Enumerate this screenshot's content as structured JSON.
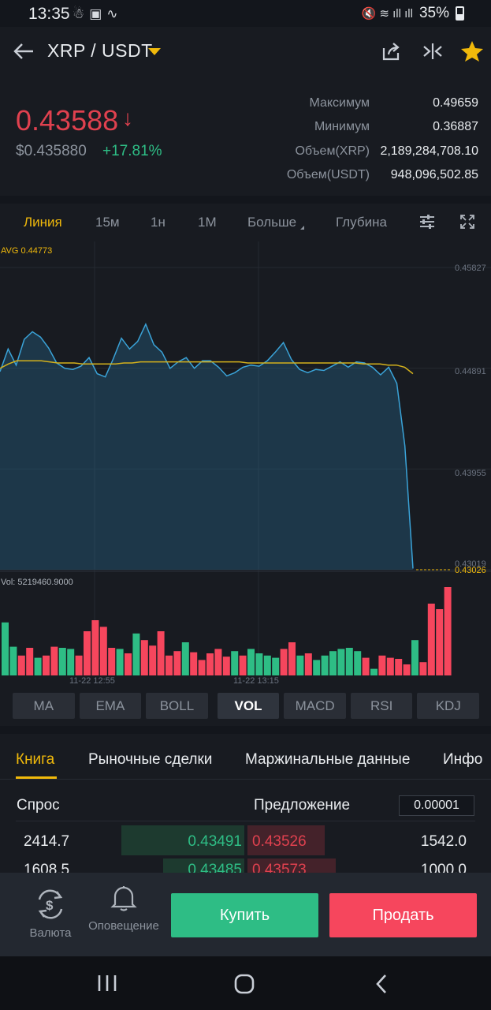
{
  "status_bar": {
    "time": "13:35",
    "battery": "35%"
  },
  "header": {
    "pair": "XRP / USDT",
    "icons": [
      "back-arrow-icon",
      "share-icon",
      "compare-icon",
      "star-icon"
    ]
  },
  "summary": {
    "price": "0.43588",
    "price_arrow": "↓",
    "fiat_price": "$0.435880",
    "change": "+17.81%",
    "stats": [
      {
        "label": "Максимум",
        "value": "0.49659"
      },
      {
        "label": "Минимум",
        "value": "0.36887"
      },
      {
        "label": "Объем(XRP)",
        "value": "2,189,284,708.10"
      },
      {
        "label": "Объем(USDT)",
        "value": "948,096,502.85"
      }
    ],
    "colors": {
      "down": "#e0414f",
      "up": "#2ebd85",
      "accent": "#f0b90b"
    }
  },
  "chart_tabs": {
    "line": "Линия",
    "m15": "15м",
    "h1": "1н",
    "M1": "1М",
    "more": "Больше",
    "depth": "Глубина"
  },
  "chart_labels": {
    "avg": "AVG 0.44773",
    "vol": "Vol: 5219460.9000",
    "y_ticks": [
      "0.45827",
      "0.44891",
      "0.43955",
      "0.43019"
    ],
    "last_price_tag": "0.43026",
    "x_ticks": [
      "11-22 12:55",
      "11-22 13:15"
    ]
  },
  "chart_data": {
    "type": "line",
    "series": [
      {
        "values": [
          0.4486,
          0.4507,
          0.4492,
          0.4516,
          0.4523,
          0.4518,
          0.4508,
          0.4494,
          0.4489,
          0.4488,
          0.4491,
          0.4499,
          0.4484,
          0.4481,
          0.4498,
          0.4517,
          0.4507,
          0.4514,
          0.453,
          0.4511,
          0.4504,
          0.4489,
          0.4495,
          0.4499,
          0.4489,
          0.4496,
          0.4496,
          0.449,
          0.4482,
          0.4485,
          0.449,
          0.4492,
          0.4491,
          0.4496,
          0.4504,
          0.4513,
          0.4497,
          0.4488,
          0.4485,
          0.4488,
          0.4487,
          0.4491,
          0.4495,
          0.449,
          0.4495,
          0.4494,
          0.449,
          0.4483,
          0.449,
          0.4475,
          0.4417,
          0.4303
        ]
      },
      {
        "values": [
          0.4489,
          0.4493,
          0.4496,
          0.4496,
          0.4496,
          0.4496,
          0.4495,
          0.4494,
          0.4494,
          0.4494,
          0.4493,
          0.4493,
          0.4493,
          0.4493,
          0.4493,
          0.4494,
          0.4494,
          0.4495,
          0.4495,
          0.4495,
          0.4495,
          0.4495,
          0.4495,
          0.4495,
          0.4495,
          0.4495,
          0.4495,
          0.4495,
          0.4495,
          0.4495,
          0.4494,
          0.4494,
          0.4494,
          0.4494,
          0.4494,
          0.4494,
          0.4494,
          0.4494,
          0.4494,
          0.4494,
          0.4494,
          0.4494,
          0.4494,
          0.4494,
          0.4493,
          0.4493,
          0.4493,
          0.4492,
          0.4492,
          0.449,
          0.4484
        ]
      }
    ],
    "ylim": [
      0.43019,
      0.45827
    ],
    "volume": {
      "values": [
        0.48,
        0.26,
        0.18,
        0.25,
        0.16,
        0.18,
        0.26,
        0.25,
        0.24,
        0.18,
        0.4,
        0.5,
        0.44,
        0.25,
        0.24,
        0.2,
        0.38,
        0.32,
        0.27,
        0.4,
        0.18,
        0.22,
        0.3,
        0.21,
        0.14,
        0.2,
        0.24,
        0.17,
        0.22,
        0.18,
        0.24,
        0.2,
        0.18,
        0.16,
        0.24,
        0.3,
        0.18,
        0.2,
        0.14,
        0.18,
        0.22,
        0.24,
        0.25,
        0.22,
        0.16,
        0.06,
        0.18,
        0.16,
        0.15,
        0.1,
        0.32,
        0.12,
        0.65,
        0.6,
        0.8
      ],
      "up": [
        true,
        true,
        false,
        false,
        true,
        false,
        false,
        true,
        true,
        false,
        false,
        false,
        false,
        false,
        true,
        false,
        true,
        false,
        false,
        false,
        false,
        false,
        true,
        false,
        false,
        false,
        false,
        false,
        true,
        false,
        true,
        true,
        true,
        true,
        false,
        false,
        true,
        false,
        true,
        true,
        true,
        true,
        true,
        true,
        false,
        true,
        false,
        false,
        false,
        false,
        true,
        false,
        false,
        false,
        false
      ]
    },
    "grid": true
  },
  "indicators": [
    "MA",
    "EMA",
    "BOLL",
    "VOL",
    "MACD",
    "RSI",
    "KDJ"
  ],
  "book": {
    "tabs": [
      "Книга",
      "Рыночные сделки",
      "Маржинальные данные",
      "Инфо"
    ],
    "bid_label": "Спрос",
    "ask_label": "Предложение",
    "precision": "0.00001",
    "rows": [
      {
        "bid_qty": "2414.7",
        "bid_price": "0.43491",
        "ask_price": "0.43526",
        "ask_qty": "1542.0"
      },
      {
        "bid_qty": "1608.5",
        "bid_price": "0.43485",
        "ask_price": "0.43573",
        "ask_qty": "1000.0"
      }
    ]
  },
  "actions": {
    "currency": "Валюта",
    "alert": "Оповещение",
    "buy": "Купить",
    "sell": "Продать"
  }
}
